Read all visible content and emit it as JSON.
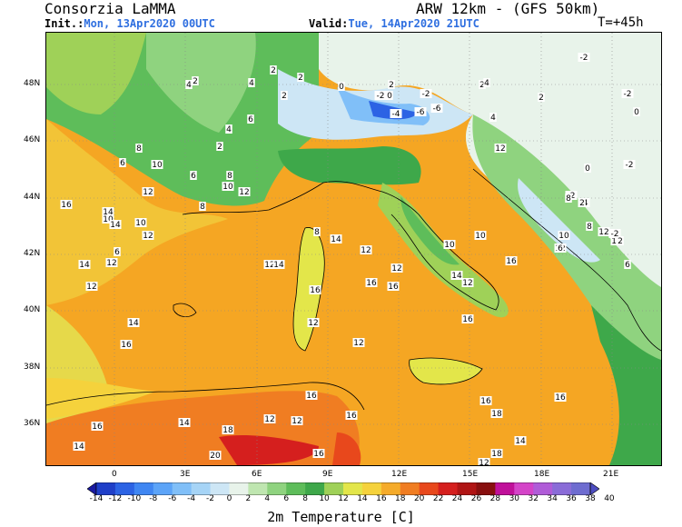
{
  "header": {
    "organization": "Consorzia LaMMA",
    "model": "ARW 12km - (GFS 50km)",
    "init_label": "Init.:",
    "init_value": "Mon, 13Apr2020 00UTC",
    "valid_label": "Valid:",
    "valid_value": "Tue, 14Apr2020 21UTC",
    "time_step": "T=+45h"
  },
  "axes": {
    "lat_labels": [
      "48N",
      "46N",
      "44N",
      "42N",
      "40N",
      "38N",
      "36N"
    ],
    "lon_labels": [
      "0",
      "3E",
      "6E",
      "9E",
      "12E",
      "15E",
      "18E",
      "21E"
    ]
  },
  "legend": {
    "title": "2m Temperature [C]",
    "ticks": [
      "-14",
      "-12",
      "-10",
      "-8",
      "-6",
      "-4",
      "-2",
      "0",
      "2",
      "4",
      "6",
      "8",
      "10",
      "12",
      "14",
      "16",
      "18",
      "20",
      "22",
      "24",
      "26",
      "28",
      "30",
      "32",
      "34",
      "36",
      "38",
      "40"
    ],
    "colors": [
      "#1a1aa0",
      "#1f3fc8",
      "#2c63e4",
      "#3f86f2",
      "#5ca4f8",
      "#80bff8",
      "#a6d4f6",
      "#cde6f5",
      "#e8f3ea",
      "#bfe6b0",
      "#8fd37f",
      "#5ebd5a",
      "#3ea84a",
      "#9fd158",
      "#e3e64a",
      "#f5d23c",
      "#f5ab2a",
      "#f07d22",
      "#e8481c",
      "#d51f1e",
      "#b01515",
      "#880f0f",
      "#c0109a",
      "#d444c8",
      "#b05cd8",
      "#8a6cd8",
      "#6e6cd0",
      "#4d4dc0"
    ]
  },
  "map_values": [
    {
      "t": "2"
    },
    {
      "t": "2"
    },
    {
      "t": "-2"
    },
    {
      "t": "4"
    },
    {
      "t": "4"
    },
    {
      "t": "2"
    },
    {
      "t": "0"
    },
    {
      "t": "2"
    },
    {
      "t": "0"
    },
    {
      "t": "-2"
    },
    {
      "t": "-6"
    },
    {
      "t": "-4"
    },
    {
      "t": "-6"
    },
    {
      "t": "-2"
    },
    {
      "t": "2"
    },
    {
      "t": "4"
    },
    {
      "t": "6"
    },
    {
      "t": "8"
    },
    {
      "t": "6"
    },
    {
      "t": "2"
    },
    {
      "t": "10"
    },
    {
      "t": "6"
    },
    {
      "t": "8"
    },
    {
      "t": "10"
    },
    {
      "t": "12"
    },
    {
      "t": "12"
    },
    {
      "t": "8"
    },
    {
      "t": "10"
    },
    {
      "t": "16"
    },
    {
      "t": "14"
    },
    {
      "t": "10"
    },
    {
      "t": "14"
    },
    {
      "t": "12"
    },
    {
      "t": "6"
    },
    {
      "t": "14"
    },
    {
      "t": "12"
    },
    {
      "t": "12"
    },
    {
      "t": "8"
    },
    {
      "t": "12"
    },
    {
      "t": "16"
    },
    {
      "t": "14"
    },
    {
      "t": "12"
    },
    {
      "t": "16"
    },
    {
      "t": "12"
    },
    {
      "t": "14"
    },
    {
      "t": "16"
    },
    {
      "t": "12"
    },
    {
      "t": "12"
    },
    {
      "t": "14"
    },
    {
      "t": "16"
    },
    {
      "t": "16"
    },
    {
      "t": "16"
    },
    {
      "t": "18"
    },
    {
      "t": "20"
    },
    {
      "t": "14"
    },
    {
      "t": "14"
    },
    {
      "t": "16"
    },
    {
      "t": "12"
    },
    {
      "t": "12"
    },
    {
      "t": "16"
    },
    {
      "t": "16"
    },
    {
      "t": "18"
    },
    {
      "t": "16"
    },
    {
      "t": "18"
    },
    {
      "t": "12"
    },
    {
      "t": "14"
    },
    {
      "t": "16"
    },
    {
      "t": "10"
    },
    {
      "t": "10"
    },
    {
      "t": "12"
    },
    {
      "t": "14"
    },
    {
      "t": "16"
    },
    {
      "t": "2"
    },
    {
      "t": "4"
    },
    {
      "t": "0"
    },
    {
      "t": "-2"
    },
    {
      "t": "-2"
    },
    {
      "t": "-4"
    },
    {
      "t": "8"
    },
    {
      "t": "12"
    },
    {
      "t": "10"
    },
    {
      "t": "6"
    },
    {
      "t": "10"
    },
    {
      "t": "12"
    },
    {
      "t": "-2"
    },
    {
      "t": "2"
    },
    {
      "t": "2"
    },
    {
      "t": "6"
    },
    {
      "t": "8"
    },
    {
      "t": "12"
    },
    {
      "t": "-2"
    },
    {
      "t": "0"
    },
    {
      "t": "2"
    },
    {
      "t": "4"
    }
  ]
}
